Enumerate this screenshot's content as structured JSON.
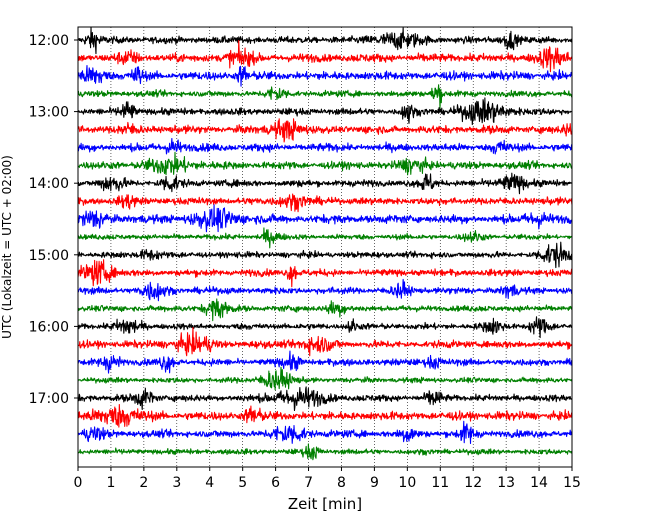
{
  "chart_data": {
    "type": "line",
    "subtype": "helicorder",
    "title": "",
    "xlabel": "Zeit  [min]",
    "ylabel": "UTC (Lokalzeit = UTC + 02:00)",
    "xlim": [
      0,
      15
    ],
    "x_ticks": [
      "0",
      "1",
      "2",
      "3",
      "4",
      "5",
      "6",
      "7",
      "8",
      "9",
      "10",
      "11",
      "12",
      "13",
      "14",
      "15"
    ],
    "y_tick_labels": [
      "12:00",
      "13:00",
      "14:00",
      "15:00",
      "16:00",
      "17:00"
    ],
    "grid": "vertical dotted lines at each minute",
    "trace_interval_minutes": 15,
    "trace_color_cycle": [
      "#000000",
      "#ff0000",
      "#0000ff",
      "#008000"
    ],
    "traces": [
      {
        "start": "12:00",
        "color": "#000000",
        "amplitude": 0.28,
        "events": [
          {
            "t": 0.45,
            "a": 0.9,
            "w": 0.3
          },
          {
            "t": 9.7,
            "a": 0.7,
            "w": 1.0
          },
          {
            "t": 13.1,
            "a": 0.8,
            "w": 0.3
          }
        ]
      },
      {
        "start": "12:15",
        "color": "#ff0000",
        "amplitude": 0.35,
        "events": [
          {
            "t": 4.9,
            "a": 0.8,
            "w": 0.5
          },
          {
            "t": 1.5,
            "a": 0.5,
            "w": 0.4
          },
          {
            "t": 14.4,
            "a": 0.9,
            "w": 0.6
          }
        ]
      },
      {
        "start": "12:30",
        "color": "#0000ff",
        "amplitude": 0.35,
        "events": [
          {
            "t": 0.5,
            "a": 0.8,
            "w": 0.5
          },
          {
            "t": 1.8,
            "a": 0.9,
            "w": 0.2
          },
          {
            "t": 5.0,
            "a": 1.0,
            "w": 0.2
          }
        ]
      },
      {
        "start": "12:45",
        "color": "#008000",
        "amplitude": 0.25,
        "events": [
          {
            "t": 10.9,
            "a": 1.3,
            "w": 0.2
          },
          {
            "t": 6.0,
            "a": 0.6,
            "w": 0.4
          }
        ]
      },
      {
        "start": "13:00",
        "color": "#000000",
        "amplitude": 0.28,
        "events": [
          {
            "t": 1.5,
            "a": 0.9,
            "w": 0.3
          },
          {
            "t": 10.0,
            "a": 1.2,
            "w": 0.2
          },
          {
            "t": 12.3,
            "a": 1.0,
            "w": 1.0
          }
        ]
      },
      {
        "start": "13:15",
        "color": "#ff0000",
        "amplitude": 0.32,
        "events": [
          {
            "t": 6.3,
            "a": 0.9,
            "w": 0.6
          },
          {
            "t": 1.5,
            "a": 0.4,
            "w": 0.4
          },
          {
            "t": 14.9,
            "a": 0.6,
            "w": 0.2
          }
        ]
      },
      {
        "start": "13:30",
        "color": "#0000ff",
        "amplitude": 0.32,
        "events": [
          {
            "t": 2.9,
            "a": 0.8,
            "w": 0.3
          },
          {
            "t": 12.8,
            "a": 0.6,
            "w": 0.3
          }
        ]
      },
      {
        "start": "13:45",
        "color": "#008000",
        "amplitude": 0.3,
        "events": [
          {
            "t": 2.8,
            "a": 0.7,
            "w": 1.0
          },
          {
            "t": 10.2,
            "a": 0.6,
            "w": 0.6
          }
        ]
      },
      {
        "start": "14:00",
        "color": "#000000",
        "amplitude": 0.28,
        "events": [
          {
            "t": 1.0,
            "a": 0.7,
            "w": 0.5
          },
          {
            "t": 2.8,
            "a": 0.7,
            "w": 0.4
          },
          {
            "t": 10.6,
            "a": 0.8,
            "w": 0.3
          },
          {
            "t": 13.2,
            "a": 0.8,
            "w": 0.5
          }
        ]
      },
      {
        "start": "14:15",
        "color": "#ff0000",
        "amplitude": 0.3,
        "events": [
          {
            "t": 1.5,
            "a": 0.6,
            "w": 0.3
          },
          {
            "t": 6.5,
            "a": 0.6,
            "w": 0.6
          }
        ]
      },
      {
        "start": "14:30",
        "color": "#0000ff",
        "amplitude": 0.35,
        "events": [
          {
            "t": 0.5,
            "a": 0.7,
            "w": 0.6
          },
          {
            "t": 4.2,
            "a": 0.8,
            "w": 1.0
          },
          {
            "t": 14.0,
            "a": 0.6,
            "w": 0.5
          }
        ]
      },
      {
        "start": "14:45",
        "color": "#008000",
        "amplitude": 0.22,
        "events": [
          {
            "t": 5.8,
            "a": 0.6,
            "w": 0.4
          },
          {
            "t": 12.0,
            "a": 0.4,
            "w": 0.4
          }
        ]
      },
      {
        "start": "15:00",
        "color": "#000000",
        "amplitude": 0.25,
        "events": [
          {
            "t": 2.2,
            "a": 0.5,
            "w": 0.4
          },
          {
            "t": 14.5,
            "a": 1.0,
            "w": 0.6
          }
        ]
      },
      {
        "start": "15:15",
        "color": "#ff0000",
        "amplitude": 0.28,
        "events": [
          {
            "t": 0.6,
            "a": 1.1,
            "w": 0.6
          },
          {
            "t": 6.5,
            "a": 1.0,
            "w": 0.2
          }
        ]
      },
      {
        "start": "15:30",
        "color": "#0000ff",
        "amplitude": 0.28,
        "events": [
          {
            "t": 2.3,
            "a": 0.8,
            "w": 0.5
          },
          {
            "t": 9.8,
            "a": 0.7,
            "w": 0.3
          },
          {
            "t": 13.1,
            "a": 0.6,
            "w": 0.3
          }
        ]
      },
      {
        "start": "15:45",
        "color": "#008000",
        "amplitude": 0.25,
        "events": [
          {
            "t": 4.2,
            "a": 0.9,
            "w": 0.5
          },
          {
            "t": 7.8,
            "a": 0.6,
            "w": 0.4
          }
        ]
      },
      {
        "start": "16:00",
        "color": "#000000",
        "amplitude": 0.25,
        "events": [
          {
            "t": 1.5,
            "a": 0.8,
            "w": 0.5
          },
          {
            "t": 8.3,
            "a": 0.6,
            "w": 0.2
          },
          {
            "t": 12.6,
            "a": 0.6,
            "w": 0.4
          },
          {
            "t": 14.0,
            "a": 0.8,
            "w": 0.4
          }
        ]
      },
      {
        "start": "16:15",
        "color": "#ff0000",
        "amplitude": 0.3,
        "events": [
          {
            "t": 3.5,
            "a": 0.8,
            "w": 0.8
          },
          {
            "t": 7.2,
            "a": 0.6,
            "w": 0.8
          }
        ]
      },
      {
        "start": "16:30",
        "color": "#0000ff",
        "amplitude": 0.28,
        "events": [
          {
            "t": 1.0,
            "a": 0.7,
            "w": 0.4
          },
          {
            "t": 2.7,
            "a": 0.7,
            "w": 0.3
          },
          {
            "t": 6.5,
            "a": 0.6,
            "w": 0.4
          },
          {
            "t": 10.8,
            "a": 0.6,
            "w": 0.3
          }
        ]
      },
      {
        "start": "16:45",
        "color": "#008000",
        "amplitude": 0.22,
        "events": [
          {
            "t": 6.0,
            "a": 1.0,
            "w": 0.6
          }
        ]
      },
      {
        "start": "17:00",
        "color": "#000000",
        "amplitude": 0.28,
        "events": [
          {
            "t": 2.0,
            "a": 0.8,
            "w": 0.4
          },
          {
            "t": 6.7,
            "a": 0.9,
            "w": 1.0
          },
          {
            "t": 10.8,
            "a": 0.7,
            "w": 0.3
          }
        ]
      },
      {
        "start": "17:15",
        "color": "#ff0000",
        "amplitude": 0.35,
        "events": [
          {
            "t": 1.2,
            "a": 0.9,
            "w": 0.9
          },
          {
            "t": 5.3,
            "a": 0.9,
            "w": 0.3
          }
        ]
      },
      {
        "start": "17:30",
        "color": "#0000ff",
        "amplitude": 0.3,
        "events": [
          {
            "t": 0.5,
            "a": 0.6,
            "w": 0.4
          },
          {
            "t": 6.4,
            "a": 0.8,
            "w": 0.7
          },
          {
            "t": 10.0,
            "a": 0.7,
            "w": 0.3
          },
          {
            "t": 11.8,
            "a": 0.9,
            "w": 0.3
          }
        ]
      },
      {
        "start": "17:45",
        "color": "#008000",
        "amplitude": 0.22,
        "events": [
          {
            "t": 7.1,
            "a": 0.7,
            "w": 0.3
          }
        ]
      }
    ]
  }
}
